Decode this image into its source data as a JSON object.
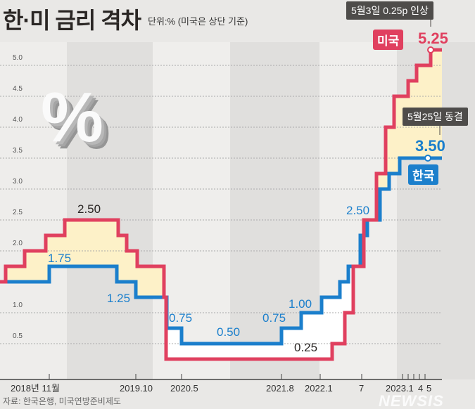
{
  "header": {
    "title": "한·미 금리 격차",
    "unit": "단위:% (미국은 상단 기준)"
  },
  "annotations": {
    "us_callout": "5월3일 0.25p 인상",
    "us_badge": "미국",
    "us_value": "5.25",
    "kr_callout": "5월25일 동결",
    "kr_value": "3.50",
    "kr_badge": "한국",
    "decor_symbol": "%"
  },
  "footer": {
    "source": "자료: 한국은행, 미국연방준비제도",
    "logo": "NEWSIS"
  },
  "colors": {
    "us": "#e0405f",
    "kr": "#1b7fcc",
    "gap_fill": "#fdf1c8",
    "callout": "#4e4c4a"
  },
  "chart_data": {
    "type": "line",
    "title": "한·미 금리 격차",
    "ylabel": "%",
    "ylim": [
      0,
      5.25
    ],
    "yticks": [
      "0.5",
      "1.0",
      "2.0",
      "2.5",
      "3.0",
      "3.5",
      "4.0",
      "4.5",
      "5.0"
    ],
    "ytick_values": [
      0.5,
      1.0,
      2.0,
      2.5,
      3.0,
      3.5,
      4.0,
      4.5,
      5.0
    ],
    "xticks": [
      "2018년 11월",
      "2019.10",
      "2020.5",
      "2021.8",
      "2022.1",
      "7",
      "2023.1",
      "4",
      "5"
    ],
    "series": [
      {
        "name": "미국",
        "step": true,
        "values": [
          1.5,
          1.75,
          2.0,
          2.25,
          2.5,
          2.25,
          2.0,
          1.75,
          1.25,
          0.25,
          0.5,
          1.0,
          1.75,
          2.5,
          3.25,
          4.0,
          4.5,
          4.75,
          5.0,
          5.25
        ]
      },
      {
        "name": "한국",
        "step": true,
        "values": [
          1.5,
          1.75,
          1.5,
          1.25,
          0.75,
          0.5,
          0.75,
          1.0,
          1.25,
          1.5,
          1.75,
          2.25,
          2.5,
          3.0,
          3.25,
          3.5
        ]
      }
    ],
    "data_labels": [
      {
        "series": "미국",
        "text": "2.50"
      },
      {
        "series": "한국",
        "text": "1.75"
      },
      {
        "series": "한국",
        "text": "1.25"
      },
      {
        "series": "한국",
        "text": "0.75"
      },
      {
        "series": "한국",
        "text": "0.50"
      },
      {
        "series": "한국",
        "text": "0.75"
      },
      {
        "series": "한국",
        "text": "1.00"
      },
      {
        "series": "미국",
        "text": "0.25"
      },
      {
        "series": "한국",
        "text": "2.50"
      }
    ]
  }
}
